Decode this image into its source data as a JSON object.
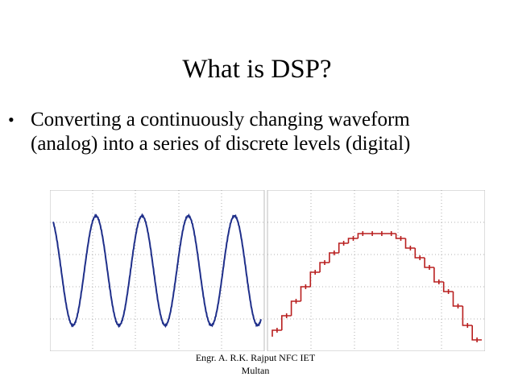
{
  "slide": {
    "title": "What is DSP?",
    "bullet": {
      "marker": "•",
      "line1": "Converting a continuously changing waveform",
      "line2": "(analog) into a series of discrete levels (digital)"
    },
    "footer": {
      "line1": "Engr. A. R.K. Rajput NFC IET",
      "line2": "Multan"
    }
  },
  "figure": {
    "analog_panel": {
      "signal": "sine",
      "cycles": 4.5,
      "color": "#1f2f8a"
    },
    "digital_panel": {
      "signal": "stepped half-sine",
      "steps": 22,
      "color": "#b81e1e"
    },
    "grid_color": "#9a9a9a"
  }
}
